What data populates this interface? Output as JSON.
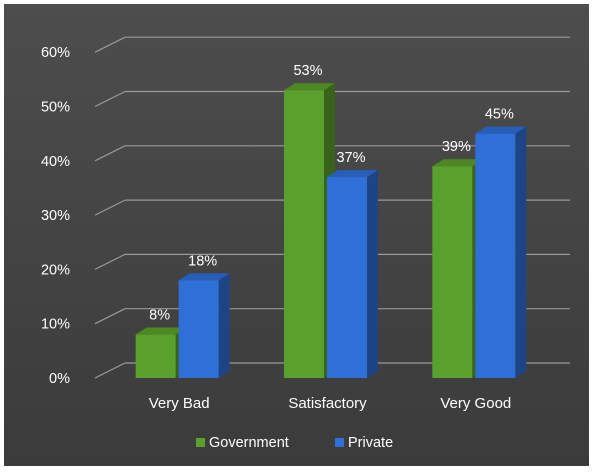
{
  "chart_data": {
    "type": "bar",
    "categories": [
      "Very Bad",
      "Satisfactory",
      "Very Good"
    ],
    "series": [
      {
        "name": "Government",
        "values": [
          8,
          53,
          39
        ],
        "labels": [
          "8%",
          "53%",
          "39%"
        ]
      },
      {
        "name": "Private",
        "values": [
          18,
          37,
          45
        ],
        "labels": [
          "18%",
          "37%",
          "45%"
        ]
      }
    ],
    "ylim": [
      0,
      60
    ],
    "yticks": [
      "0%",
      "10%",
      "20%",
      "30%",
      "40%",
      "50%",
      "60%"
    ],
    "grid": true,
    "legend": "bottom-center",
    "style": "3d-clustered-columns"
  },
  "colors": {
    "background": "#4a4a4a",
    "government": "#5aa02c",
    "private": "#2f6fd8",
    "text": "#ffffff",
    "grid": "#9a9a9a"
  }
}
